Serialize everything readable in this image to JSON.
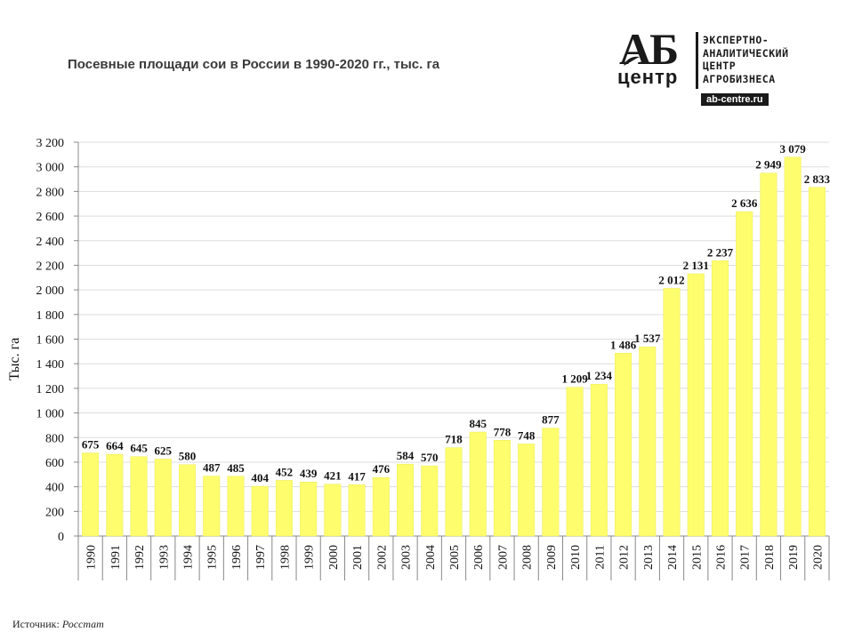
{
  "title": "Посевные площади сои в России в 1990-2020 гг., тыс. га",
  "logo": {
    "mark_top": "АБ",
    "mark_bottom": "центр",
    "lines": [
      "ЭКСПЕРТНО-",
      "АНАЛИТИЧЕСКИЙ",
      "ЦЕНТР",
      "АГРОБИЗНЕСА"
    ],
    "url": "ab-centre.ru"
  },
  "source": {
    "label": "Источник:",
    "name": "Росстат"
  },
  "colors": {
    "bar": "#fdfd6e",
    "bar_stroke": "#ecec55",
    "grid": "#dddddd",
    "text": "#111111"
  },
  "chart_data": {
    "type": "bar",
    "title": "Посевные площади сои в России в 1990-2020 гг., тыс. га",
    "xlabel": "",
    "ylabel": "Тыс. га",
    "ylim": [
      0,
      3200
    ],
    "yticks": [
      0,
      200,
      400,
      600,
      800,
      1000,
      1200,
      1400,
      1600,
      1800,
      2000,
      2200,
      2400,
      2600,
      2800,
      3000,
      3200
    ],
    "ytick_labels": [
      "0",
      "200",
      "400",
      "600",
      "800",
      "1 000",
      "1 200",
      "1 400",
      "1 600",
      "1 800",
      "2 000",
      "2 200",
      "2 400",
      "2 600",
      "2 800",
      "3 000",
      "3 200"
    ],
    "grid": true,
    "categories": [
      "1990",
      "1991",
      "1992",
      "1993",
      "1994",
      "1995",
      "1996",
      "1997",
      "1998",
      "1999",
      "2000",
      "2001",
      "2002",
      "2003",
      "2004",
      "2005",
      "2006",
      "2007",
      "2008",
      "2009",
      "2010",
      "2011",
      "2012",
      "2013",
      "2014",
      "2015",
      "2016",
      "2017",
      "2018",
      "2019",
      "2020"
    ],
    "values": [
      675,
      664,
      645,
      625,
      580,
      487,
      485,
      404,
      452,
      439,
      421,
      417,
      476,
      584,
      570,
      718,
      845,
      778,
      748,
      877,
      1209,
      1234,
      1486,
      1537,
      2012,
      2131,
      2237,
      2636,
      2949,
      3079,
      2833
    ],
    "value_labels": [
      "675",
      "664",
      "645",
      "625",
      "580",
      "487",
      "485",
      "404",
      "452",
      "439",
      "421",
      "417",
      "476",
      "584",
      "570",
      "718",
      "845",
      "778",
      "748",
      "877",
      "1 209",
      "1 234",
      "1 486",
      "1 537",
      "2 012",
      "2 131",
      "2 237",
      "2 636",
      "2 949",
      "3 079",
      "2 833"
    ]
  }
}
